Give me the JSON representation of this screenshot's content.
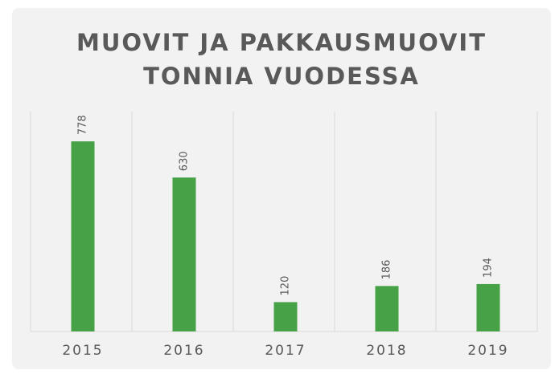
{
  "chart_data": {
    "type": "bar",
    "title": [
      "MUOVIT JA PAKKAUSMUOVIT",
      "TONNIA VUODESSA"
    ],
    "categories": [
      "2015",
      "2016",
      "2017",
      "2018",
      "2019"
    ],
    "values": [
      778,
      630,
      120,
      186,
      194
    ],
    "color": "#46a147",
    "ylim": [
      0,
      900
    ]
  }
}
